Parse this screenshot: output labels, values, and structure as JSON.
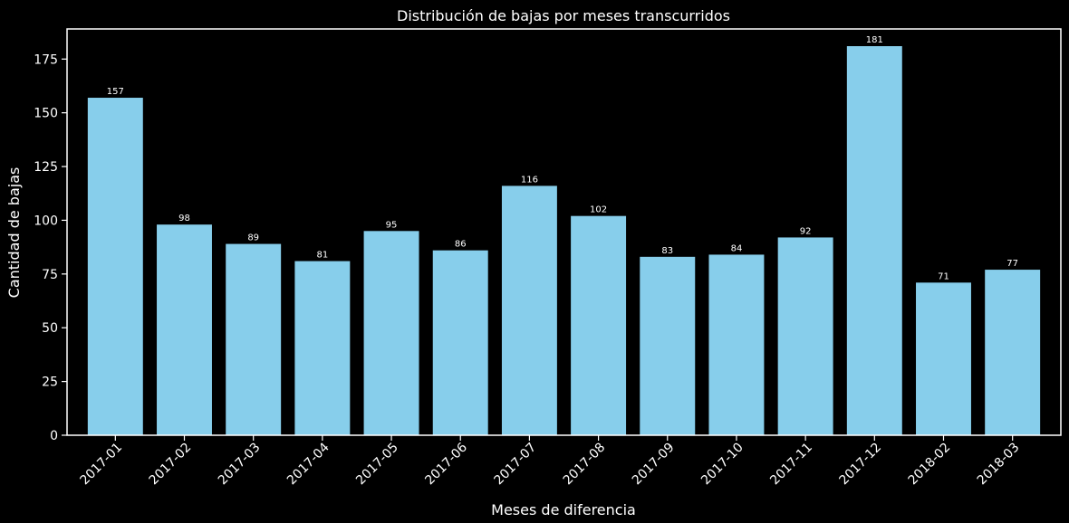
{
  "chart_data": {
    "type": "bar",
    "title": "Distribución de bajas por meses transcurridos",
    "xlabel": "Meses de diferencia",
    "ylabel": "Cantidad de bajas",
    "categories": [
      "2017-01",
      "2017-02",
      "2017-03",
      "2017-04",
      "2017-05",
      "2017-06",
      "2017-07",
      "2017-08",
      "2017-09",
      "2017-10",
      "2017-11",
      "2017-12",
      "2018-02",
      "2018-03"
    ],
    "values": [
      157,
      98,
      89,
      81,
      95,
      86,
      116,
      102,
      83,
      84,
      92,
      181,
      71,
      77
    ],
    "ylim": [
      0,
      189
    ],
    "yticks": [
      0,
      25,
      50,
      75,
      100,
      125,
      150,
      175
    ],
    "grid": false,
    "legend": "none",
    "bar_color": "#87ceeb",
    "background_color": "#000000",
    "axis_color": "#ffffff"
  }
}
